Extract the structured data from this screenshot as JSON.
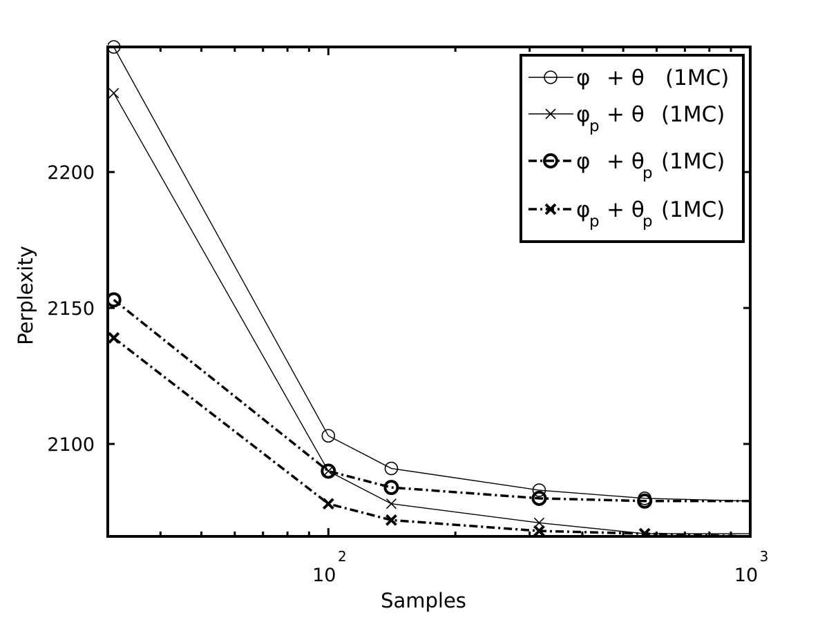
{
  "chart_data": {
    "type": "line",
    "xscale": "log",
    "xlabel": "Samples",
    "ylabel": "Perplexity",
    "xlim": [
      30,
      1000
    ],
    "ylim": [
      2066,
      2246
    ],
    "x_ticks": [
      {
        "value": 100,
        "base": "10",
        "exp": "2"
      },
      {
        "value": 1000,
        "base": "10",
        "exp": "3"
      }
    ],
    "y_ticks": [
      {
        "value": 2100,
        "label": "2100"
      },
      {
        "value": 2150,
        "label": "2150"
      },
      {
        "value": 2200,
        "label": "2200"
      }
    ],
    "grid": false,
    "legend_position": "top-right",
    "series": [
      {
        "id": "phi_theta",
        "legend": {
          "main": "φ",
          "sub1": "",
          "mid": "+ θ",
          "sub2": "",
          "tail": "(1MC)"
        },
        "marker": "circle",
        "line_style": "solid",
        "bold": false,
        "x": [
          31,
          100,
          141,
          316,
          562,
          1000
        ],
        "y": [
          2246,
          2103,
          2091,
          2083,
          2080,
          2079
        ]
      },
      {
        "id": "phip_theta",
        "legend": {
          "main": "φ",
          "sub1": "p",
          "mid": "+ θ",
          "sub2": "",
          "tail": "(1MC)"
        },
        "marker": "x",
        "line_style": "solid",
        "bold": false,
        "x": [
          31,
          100,
          141,
          316,
          562,
          1000
        ],
        "y": [
          2229,
          2090,
          2078,
          2071,
          2067,
          2067
        ]
      },
      {
        "id": "phi_thetap",
        "legend": {
          "main": "φ",
          "sub1": "",
          "mid": "+ θ",
          "sub2": "p",
          "tail": "(1MC)"
        },
        "marker": "circle",
        "line_style": "dashdot",
        "bold": true,
        "x": [
          31,
          100,
          141,
          316,
          562,
          1000
        ],
        "y": [
          2153,
          2090,
          2084,
          2080,
          2079,
          2079
        ]
      },
      {
        "id": "phip_thetap",
        "legend": {
          "main": "φ",
          "sub1": "p",
          "mid": "+ θ",
          "sub2": "p",
          "tail": "(1MC)"
        },
        "marker": "x",
        "line_style": "dashdot",
        "bold": true,
        "x": [
          31,
          100,
          141,
          316,
          562,
          1000
        ],
        "y": [
          2139,
          2078,
          2072,
          2068,
          2067,
          2066
        ]
      }
    ]
  }
}
